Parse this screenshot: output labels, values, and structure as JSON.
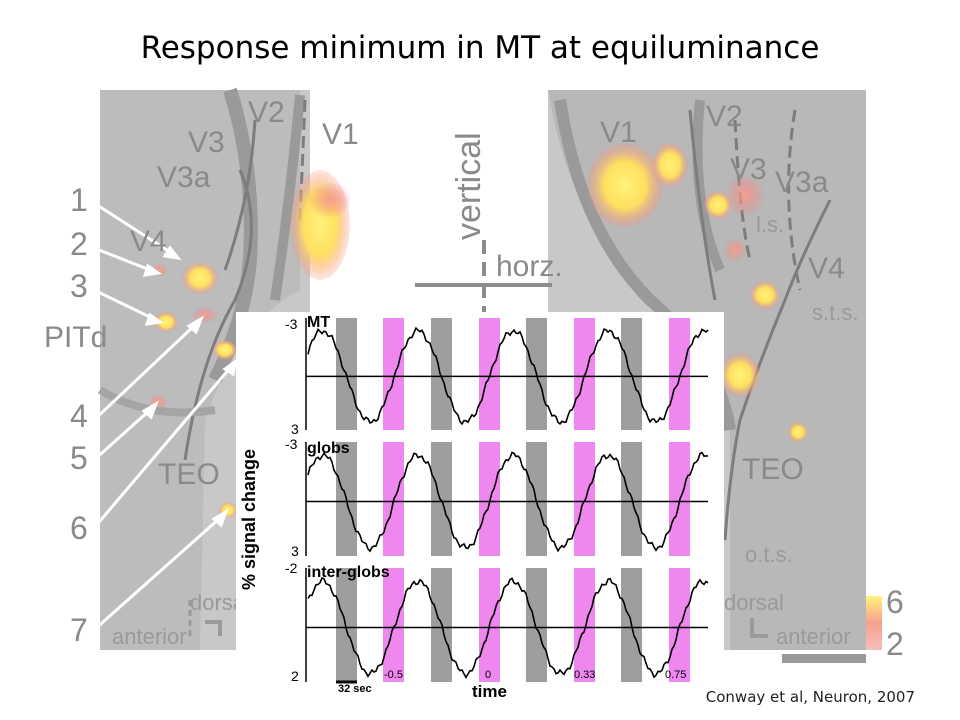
{
  "title": "Response minimum in MT at equiluminance",
  "citation": "Conway et al,  Neuron, 2007",
  "left_map": {
    "areas": [
      "V2",
      "V1",
      "V3",
      "V3a",
      "V4",
      "PITd",
      "TEO",
      "dorsal",
      "anterior"
    ],
    "numbers": [
      "1",
      "2",
      "3",
      "4",
      "5",
      "6",
      "7"
    ]
  },
  "right_map": {
    "areas": [
      "V1",
      "V2",
      "V3",
      "V3a",
      "l.s.",
      "V4",
      "s.t.s.",
      "TEO",
      "o.t.s.",
      "dorsal",
      "anterior"
    ]
  },
  "orientation": {
    "vertical": "vertical",
    "horizontal": "horz."
  },
  "color_scale": {
    "max": "6",
    "min": "2",
    "hot": "#ffee66",
    "cold": "#f08080"
  },
  "plot": {
    "ylabel": "% signal change",
    "xlabel": "time",
    "scale_bar": "32 sec",
    "traces": [
      {
        "name": "MT",
        "top": "-3",
        "bottom": "3"
      },
      {
        "name": "globs",
        "top": "-3",
        "bottom": "3"
      },
      {
        "name": "inter-globs",
        "top": "-2",
        "bottom": "2"
      }
    ],
    "x_ticks": [
      "-0.5",
      "0",
      "0.33",
      "0.75"
    ],
    "block_colors": {
      "gray": "#9e9e9e",
      "magenta": "#ee88ee"
    }
  }
}
